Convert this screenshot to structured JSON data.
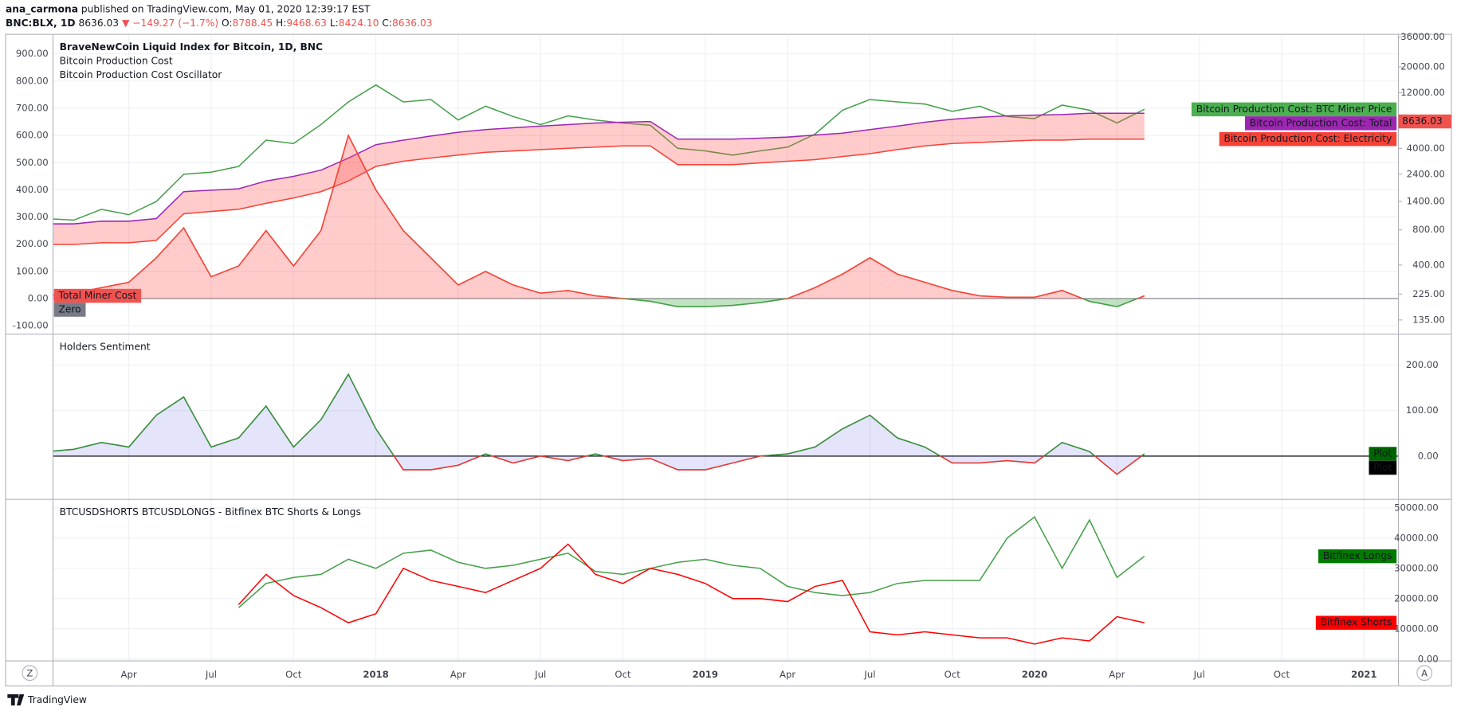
{
  "header": {
    "author": "ana_carmona",
    "published": "published on TradingView.com, May 01, 2020 12:39:17 EST",
    "symbol": "BNC:BLX, 1D",
    "last": "8636.03",
    "change": "▼ −149.27 (−1.7%)",
    "ohlc": [
      {
        "key": "O:",
        "value": "8788.45"
      },
      {
        "key": "H:",
        "value": "9468.63"
      },
      {
        "key": "L:",
        "value": "8424.10"
      },
      {
        "key": "C:",
        "value": "8636.03"
      }
    ]
  },
  "ui": {
    "left_button": "Z",
    "right_button": "A",
    "brand": "TradingView"
  },
  "chart_data": [
    {
      "type": "line",
      "title": "BraveNewCoin Liquid Index for Bitcoin, 1D, BNC",
      "subtitles": [
        "Bitcoin Production Cost",
        "Bitcoin Production Cost Oscillator"
      ],
      "y_axis_side": "left",
      "grid": true,
      "y2_log": true,
      "ylim": [
        -131,
        972
      ],
      "yticks": [
        {
          "value": 900,
          "label": "900.00"
        },
        {
          "value": 800,
          "label": "800.00"
        },
        {
          "value": 700,
          "label": "700.00"
        },
        {
          "value": 600,
          "label": "600.00"
        },
        {
          "value": 500,
          "label": "500.00"
        },
        {
          "value": 400,
          "label": "400.00"
        },
        {
          "value": 300,
          "label": "300.00"
        },
        {
          "value": 200,
          "label": "200.00"
        },
        {
          "value": 100,
          "label": "100.00"
        },
        {
          "value": 0,
          "label": "0.00"
        },
        {
          "value": -100,
          "label": "-100.00"
        }
      ],
      "y2lim": [
        102,
        38000
      ],
      "y2ticks": [
        {
          "value": 36000,
          "label": "36000.00"
        },
        {
          "value": 20000,
          "label": "20000.00"
        },
        {
          "value": 12000,
          "label": "12000.00"
        },
        {
          "value": 4000,
          "label": "4000.00"
        },
        {
          "value": 2400,
          "label": "2400.00"
        },
        {
          "value": 1400,
          "label": "1400.00"
        },
        {
          "value": 800,
          "label": "800.00"
        },
        {
          "value": 400,
          "label": "400.00"
        },
        {
          "value": 225,
          "label": "225.00"
        },
        {
          "value": 135,
          "label": "135.00"
        }
      ],
      "series": [
        {
          "name": "Bitcoin Production Cost: BTC Miner Price",
          "color": "#43a047",
          "axis": "y2",
          "last_value_box": true,
          "label_color": "#4caf50",
          "values": [
            1000,
            970,
            1200,
            1080,
            1400,
            2400,
            2500,
            2800,
            4700,
            4400,
            6400,
            10000,
            14000,
            10000,
            10500,
            7000,
            9200,
            7500,
            6400,
            7600,
            7000,
            6600,
            6300,
            4000,
            3800,
            3500,
            3800,
            4100,
            5300,
            8500,
            10500,
            10000,
            9600,
            8300,
            9200,
            7500,
            7200,
            9400,
            8500,
            6600,
            8636.03,
            null,
            null,
            null,
            null,
            null,
            null,
            null,
            null,
            null
          ]
        },
        {
          "name": "Bitcoin Production Cost: Total",
          "color": "#9c27b0",
          "axis": "y2",
          "fill_to_next": "rgba(255,82,82,0.3)",
          "label_color": "#9c27b0",
          "values": [
            900,
            900,
            950,
            950,
            1000,
            1700,
            1750,
            1800,
            2100,
            2300,
            2600,
            3300,
            4300,
            4700,
            5100,
            5500,
            5800,
            6000,
            6200,
            6400,
            6600,
            6700,
            6800,
            4800,
            4800,
            4800,
            4900,
            5000,
            5200,
            5400,
            5800,
            6200,
            6700,
            7100,
            7400,
            7600,
            7700,
            7800,
            8000,
            8000,
            8000,
            null,
            null,
            null,
            null,
            null,
            null,
            null,
            null,
            null
          ]
        },
        {
          "name": "Bitcoin Production Cost: Electricity",
          "color": "#f44336",
          "axis": "y2",
          "label_color": "#f44336",
          "values": [
            600,
            600,
            620,
            620,
            650,
            1100,
            1150,
            1200,
            1350,
            1500,
            1700,
            2100,
            2800,
            3100,
            3300,
            3500,
            3700,
            3800,
            3900,
            4000,
            4100,
            4200,
            4200,
            2900,
            2900,
            2900,
            3000,
            3100,
            3200,
            3400,
            3600,
            3900,
            4200,
            4400,
            4500,
            4600,
            4700,
            4700,
            4800,
            4800,
            4800,
            null,
            null,
            null,
            null,
            null,
            null,
            null,
            null,
            null
          ]
        },
        {
          "name": "Total Miner Cost",
          "color": "#f44336",
          "fill": "rgba(255,82,82,0.3)",
          "negative_color": "#43a047",
          "negative_fill": "rgba(76,175,80,0.35)",
          "label_side": "left",
          "label_color": "#ef5350",
          "values": [
            10,
            20,
            40,
            60,
            150,
            260,
            80,
            120,
            250,
            120,
            250,
            600,
            400,
            250,
            150,
            50,
            100,
            50,
            20,
            30,
            10,
            0,
            -10,
            -30,
            -30,
            -25,
            -15,
            0,
            40,
            90,
            150,
            90,
            60,
            30,
            10,
            5,
            5,
            30,
            -10,
            -30,
            10,
            null,
            null,
            null,
            null,
            null,
            null,
            null,
            null,
            null
          ]
        }
      ],
      "hlines": [
        {
          "name": "Zero",
          "value": 0,
          "color": "#787b86",
          "label_side": "left"
        }
      ]
    },
    {
      "type": "line",
      "title": "Holders Sentiment",
      "y_axis_side": "right",
      "grid": true,
      "ylim": [
        -95,
        268
      ],
      "yticks": [
        {
          "value": 200,
          "label": "200.00"
        },
        {
          "value": 100,
          "label": "100.00"
        },
        {
          "value": 0,
          "label": "0.00"
        }
      ],
      "series": [
        {
          "name": "Plot",
          "color": "#388e3c",
          "fill": "rgba(120,120,230,0.2)",
          "negative_color": "#e53935",
          "negative_fill": "rgba(120,120,230,0.2)",
          "label_side": "right",
          "label_color": "#006400",
          "values": [
            10,
            15,
            30,
            20,
            90,
            130,
            20,
            40,
            110,
            20,
            80,
            180,
            60,
            -30,
            -30,
            -20,
            5,
            -15,
            0,
            -10,
            5,
            -10,
            -5,
            -30,
            -30,
            -15,
            0,
            5,
            20,
            60,
            90,
            40,
            20,
            -15,
            -15,
            -10,
            -15,
            30,
            10,
            -40,
            5,
            null,
            null,
            null,
            null,
            null,
            null,
            null,
            null,
            null
          ]
        }
      ],
      "hlines": [
        {
          "name": "Plot",
          "value": 0,
          "color": "#000000",
          "label_side": "right"
        }
      ]
    },
    {
      "type": "line",
      "title": "BTCUSDSHORTS BTCUSDLONGS - Bitfinex BTC Shorts & Longs",
      "y_axis_side": "right",
      "grid": true,
      "categories": [
        null,
        null,
        null,
        "Apr",
        null,
        null,
        "Jul",
        null,
        null,
        "Oct",
        null,
        null,
        "2018",
        null,
        null,
        "Apr",
        null,
        null,
        "Jul",
        null,
        null,
        "Oct",
        null,
        null,
        "2019",
        null,
        null,
        "Apr",
        null,
        null,
        "Jul",
        null,
        null,
        "Oct",
        null,
        null,
        "2020",
        null,
        null,
        "Apr",
        null,
        null,
        "Jul",
        null,
        null,
        "Oct",
        null,
        null,
        "2021",
        null
      ],
      "ylim": [
        -600,
        52800
      ],
      "yticks": [
        {
          "value": 50000,
          "label": "50000.00"
        },
        {
          "value": 40000,
          "label": "40000.00"
        },
        {
          "value": 30000,
          "label": "30000.00"
        },
        {
          "value": 20000,
          "label": "20000.00"
        },
        {
          "value": 10000,
          "label": "10000.00"
        },
        {
          "value": 0,
          "label": "0.00"
        }
      ],
      "series": [
        {
          "name": "Bitfinex Longs",
          "color": "#43a047",
          "label_side": "right",
          "label_color": "#007a00",
          "values": [
            null,
            null,
            null,
            null,
            null,
            null,
            null,
            17000,
            25000,
            27000,
            28000,
            33000,
            30000,
            35000,
            36000,
            32000,
            30000,
            31000,
            33000,
            35000,
            29000,
            28000,
            30000,
            32000,
            33000,
            31000,
            30000,
            24000,
            22000,
            21000,
            22000,
            25000,
            26000,
            26000,
            26000,
            40000,
            47000,
            30000,
            46000,
            27000,
            34000,
            null,
            null,
            null,
            null,
            null,
            null,
            null,
            null,
            null
          ]
        },
        {
          "name": "Bitfinex Shorts",
          "color": "#ff0000",
          "label_side": "right",
          "label_color": "#ff0000",
          "values": [
            null,
            null,
            null,
            null,
            null,
            null,
            null,
            18000,
            28000,
            21000,
            17000,
            12000,
            15000,
            30000,
            26000,
            24000,
            22000,
            26000,
            30000,
            38000,
            28000,
            25000,
            30000,
            28000,
            25000,
            20000,
            20000,
            19000,
            24000,
            26000,
            9000,
            8000,
            9000,
            8000,
            7000,
            7000,
            5000,
            7000,
            6000,
            14000,
            12000,
            null,
            null,
            null,
            null,
            null,
            null,
            null,
            null,
            null
          ]
        }
      ]
    }
  ]
}
